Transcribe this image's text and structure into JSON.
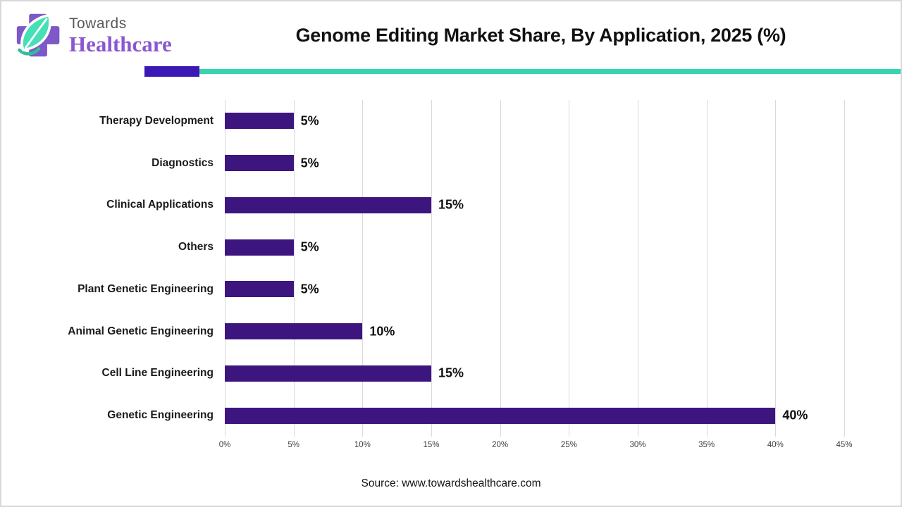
{
  "header": {
    "logo": {
      "line1": "Towards",
      "line2": "Healthcare"
    },
    "title": "Genome Editing Market Share, By Application, 2025 (%)"
  },
  "divider": {
    "purple_color": "#3c18b4",
    "teal_color": "#38d6b0"
  },
  "chart_data": {
    "type": "bar",
    "orientation": "horizontal",
    "title": "Genome Editing Market Share, By Application, 2025 (%)",
    "categories": [
      "Therapy Development",
      "Diagnostics",
      "Clinical Applications",
      "Others",
      "Plant Genetic Engineering",
      "Animal Genetic Engineering",
      "Cell Line Engineering",
      "Genetic Engineering"
    ],
    "values": [
      5,
      5,
      15,
      5,
      5,
      10,
      15,
      40
    ],
    "value_labels": [
      "5%",
      "5%",
      "15%",
      "5%",
      "5%",
      "10%",
      "15%",
      "40%"
    ],
    "xlabel": "",
    "ylabel": "",
    "xlim": [
      0,
      45
    ],
    "x_ticks": [
      "0%",
      "5%",
      "10%",
      "15%",
      "20%",
      "25%",
      "30%",
      "35%",
      "40%",
      "45%"
    ],
    "bar_color": "#3d157f",
    "grid": true,
    "gridline_color": "#d9d9d9",
    "legend": "none"
  },
  "footer": {
    "source": "Source: www.towardshealthcare.com"
  },
  "logo_colors": {
    "cross": "#7e57c8",
    "leaf": "#47e0b6",
    "leaf_dark": "#2fbf9a"
  }
}
